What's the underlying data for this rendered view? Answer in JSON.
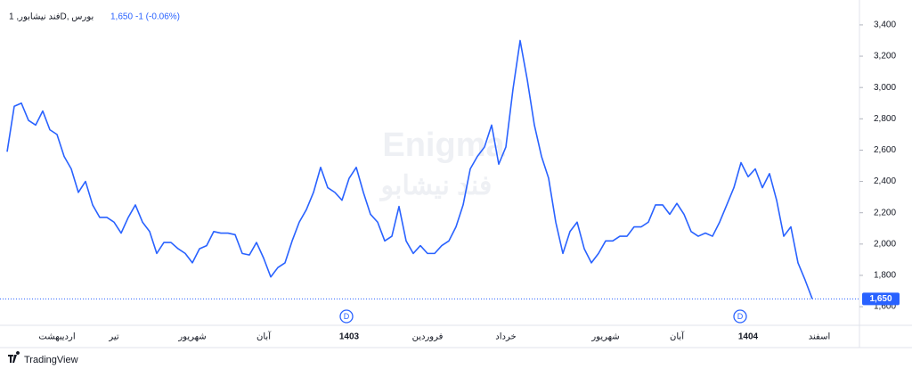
{
  "chart_data": {
    "type": "line",
    "header": {
      "symbol": "فند نیشابور, 1D, بورس",
      "price": "1,650",
      "change": "-1 (-0.06%)"
    },
    "watermark": [
      "Enigma",
      "فند نیشابو"
    ],
    "brand": "TradingView",
    "event_markers": [
      "D",
      "D"
    ],
    "last_price": {
      "value": 1650,
      "label": "1,650"
    },
    "color": "#2962ff",
    "ylim": [
      1481,
      3502
    ],
    "yticks": [
      {
        "value": 1600,
        "label": "1,600"
      },
      {
        "value": 1800,
        "label": "1,800"
      },
      {
        "value": 2000,
        "label": "2,000"
      },
      {
        "value": 2200,
        "label": "2,200"
      },
      {
        "value": 2400,
        "label": "2,400"
      },
      {
        "value": 2600,
        "label": "2,600"
      },
      {
        "value": 2800,
        "label": "2,800"
      },
      {
        "value": 3000,
        "label": "3,000"
      },
      {
        "value": 3200,
        "label": "3,200"
      },
      {
        "value": 3400,
        "label": "3,400"
      }
    ],
    "categories": [
      null,
      null,
      null,
      null,
      null,
      null,
      null,
      "اردیبهشت",
      null,
      null,
      null,
      null,
      null,
      null,
      null,
      "تیر",
      null,
      null,
      null,
      null,
      null,
      null,
      null,
      null,
      null,
      null,
      "شهریور",
      null,
      null,
      null,
      null,
      null,
      null,
      null,
      null,
      null,
      "آبان",
      null,
      null,
      null,
      null,
      null,
      null,
      null,
      null,
      null,
      null,
      null,
      "1403",
      null,
      null,
      null,
      null,
      null,
      null,
      null,
      null,
      null,
      null,
      "فروردین",
      null,
      null,
      null,
      null,
      null,
      null,
      null,
      null,
      null,
      null,
      "خرداد",
      null,
      null,
      null,
      null,
      null,
      null,
      null,
      null,
      null,
      null,
      null,
      null,
      null,
      "شهریور",
      null,
      null,
      null,
      null,
      null,
      null,
      null,
      null,
      null,
      "آبان",
      null,
      null,
      null,
      null,
      null,
      null,
      null,
      null,
      null,
      "1404",
      null,
      null,
      null,
      null,
      null,
      null,
      null,
      null,
      null,
      "اسفند"
    ],
    "values": [
      2590,
      2880,
      2900,
      2790,
      2760,
      2850,
      2730,
      2700,
      2560,
      2480,
      2330,
      2400,
      2250,
      2170,
      2170,
      2140,
      2070,
      2170,
      2250,
      2140,
      2080,
      1940,
      2010,
      2010,
      1970,
      1940,
      1880,
      1970,
      1990,
      2080,
      2070,
      2070,
      2060,
      1940,
      1930,
      2010,
      1910,
      1790,
      1850,
      1880,
      2020,
      2140,
      2220,
      2330,
      2490,
      2360,
      2330,
      2280,
      2420,
      2490,
      2330,
      2190,
      2140,
      2020,
      2050,
      2240,
      2020,
      1940,
      1990,
      1940,
      1940,
      1990,
      2020,
      2110,
      2250,
      2480,
      2560,
      2620,
      2760,
      2510,
      2620,
      2990,
      3300,
      3050,
      2760,
      2560,
      2420,
      2140,
      1940,
      2080,
      2140,
      1970,
      1880,
      1940,
      2020,
      2020,
      2050,
      2050,
      2110,
      2110,
      2140,
      2250,
      2250,
      2190,
      2260,
      2190,
      2080,
      2050,
      2070,
      2050,
      2140,
      2250,
      2360,
      2520,
      2430,
      2480,
      2360,
      2450,
      2280,
      2050,
      2110,
      1880,
      1770,
      1650,
      null
    ]
  }
}
